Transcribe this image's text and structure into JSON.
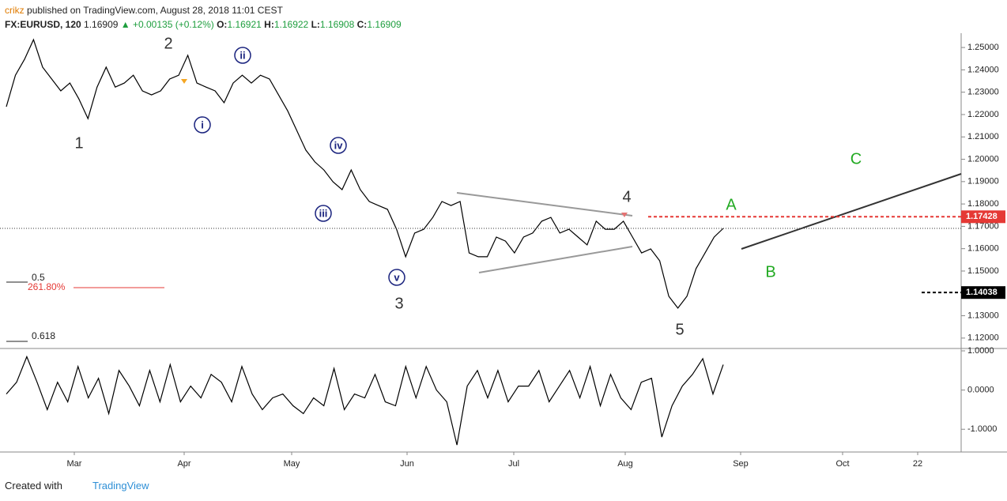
{
  "header": {
    "author": "crikz",
    "published": "published on TradingView.com, August 28, 2018 11:01 CEST",
    "symbol": "FX:EURUSD, 120",
    "last": "1.16909",
    "change": "▲ +0.00135 (+0.12%)",
    "ohlc": [
      {
        "label": "O:",
        "value": "1.16921"
      },
      {
        "label": "H:",
        "value": "1.16922"
      },
      {
        "label": "L:",
        "value": "1.16908"
      },
      {
        "label": "C:",
        "value": "1.16909"
      }
    ]
  },
  "chart_data": [
    {
      "type": "line",
      "color": "#000000",
      "values": [
        1.2235,
        1.2376,
        1.2447,
        1.2535,
        1.2412,
        1.2359,
        1.2306,
        1.2341,
        1.227,
        1.2182,
        1.2323,
        1.2412,
        1.2323,
        1.2341,
        1.2376,
        1.2306,
        1.2288,
        1.2306,
        1.2359,
        1.2376,
        1.2465,
        1.2341,
        1.2323,
        1.2306,
        1.2253,
        1.2341,
        1.2376,
        1.2341,
        1.2376,
        1.2359,
        1.2288,
        1.2217,
        1.2129,
        1.2041,
        1.1988,
        1.1952,
        1.1899,
        1.1864,
        1.1952,
        1.1864,
        1.1811,
        1.1793,
        1.1776,
        1.1687,
        1.1564,
        1.167,
        1.1687,
        1.174,
        1.1811,
        1.1793,
        1.1811,
        1.1581,
        1.1564,
        1.1564,
        1.1652,
        1.1634,
        1.1581,
        1.1652,
        1.167,
        1.1723,
        1.174,
        1.167,
        1.1687,
        1.1652,
        1.1617,
        1.1723,
        1.1687,
        1.1687,
        1.1723,
        1.1652,
        1.1581,
        1.1599,
        1.1546,
        1.1387,
        1.1334,
        1.1387,
        1.1511,
        1.1581,
        1.1652,
        1.16909
      ],
      "ylim": [
        1.1157,
        1.2564
      ],
      "yticks": [
        {
          "value": 1.12,
          "label": "1.12000"
        },
        {
          "value": 1.13,
          "label": "1.13000"
        },
        {
          "value": 1.14,
          "label": "1.14000"
        },
        {
          "value": 1.15,
          "label": "1.15000"
        },
        {
          "value": 1.16,
          "label": "1.16000"
        },
        {
          "value": 1.17,
          "label": "1.17000"
        },
        {
          "value": 1.18,
          "label": "1.18000"
        },
        {
          "value": 1.19,
          "label": "1.19000"
        },
        {
          "value": 1.2,
          "label": "1.20000"
        },
        {
          "value": 1.21,
          "label": "1.21000"
        },
        {
          "value": 1.22,
          "label": "1.22000"
        },
        {
          "value": 1.23,
          "label": "1.23000"
        },
        {
          "value": 1.24,
          "label": "1.24000"
        },
        {
          "value": 1.25,
          "label": "1.25000"
        }
      ],
      "x_labels": [
        "Mar",
        "Apr",
        "May",
        "Jun",
        "Jul",
        "Aug",
        "Sep",
        "Oct",
        "22"
      ],
      "waves": [
        "1",
        "2",
        "3",
        "4",
        "5"
      ],
      "wave_color": "#333333",
      "subwaves": [
        "i",
        "ii",
        "iii",
        "iv",
        "v"
      ],
      "subwave_color": "#1a237e",
      "corrective": [
        "A",
        "B",
        "C"
      ],
      "corrective_color": "#22aa22",
      "levels": [
        {
          "value": 1.17428,
          "color": "#e53935"
        },
        {
          "value": 1.14038,
          "color": "#000000"
        }
      ],
      "fib_labels": [
        {
          "text": "0.5",
          "color": "#222222"
        },
        {
          "text": "261.80%",
          "color": "#e53935"
        },
        {
          "text": "0.618",
          "color": "#222222"
        }
      ]
    },
    {
      "type": "line",
      "color": "#000000",
      "values": [
        -0.1,
        0.2,
        0.85,
        0.2,
        -0.5,
        0.2,
        -0.3,
        0.6,
        -0.2,
        0.3,
        -0.6,
        0.5,
        0.1,
        -0.4,
        0.5,
        -0.3,
        0.65,
        -0.3,
        0.1,
        -0.2,
        0.4,
        0.2,
        -0.3,
        0.6,
        -0.1,
        -0.5,
        -0.2,
        -0.1,
        -0.4,
        -0.6,
        -0.2,
        -0.4,
        0.55,
        -0.5,
        -0.1,
        -0.2,
        0.4,
        -0.3,
        -0.4,
        0.6,
        -0.2,
        0.6,
        0.0,
        -0.3,
        -1.4,
        0.1,
        0.5,
        -0.2,
        0.5,
        -0.3,
        0.1,
        0.1,
        0.5,
        -0.3,
        0.1,
        0.5,
        -0.2,
        0.6,
        -0.4,
        0.4,
        -0.2,
        -0.5,
        0.2,
        0.3,
        -1.2,
        -0.4,
        0.1,
        0.4,
        0.8,
        -0.1,
        0.65
      ],
      "ylim": [
        -1.58,
        1.04
      ],
      "yticks": [
        {
          "value": 1,
          "label": "1.0000"
        },
        {
          "value": 0,
          "label": "0.0000"
        },
        {
          "value": -1,
          "label": "-1.0000"
        }
      ]
    }
  ],
  "footer": {
    "created": "Created with",
    "brand": "TradingView"
  }
}
